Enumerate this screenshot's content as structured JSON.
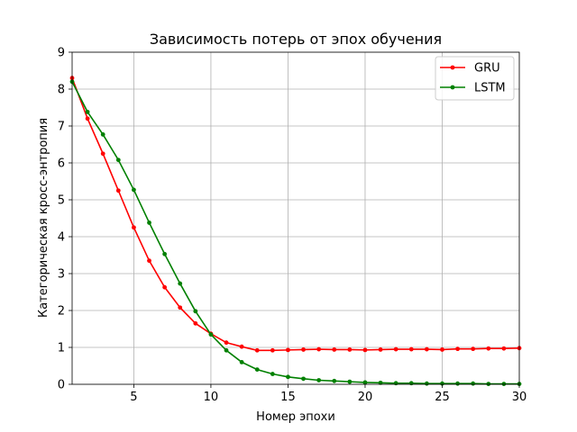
{
  "chart_data": {
    "type": "line",
    "title": "Зависимость потерь от эпох обучения",
    "xlabel": "Номер эпохи",
    "ylabel": "Категорическая кросс-энтропия",
    "xlim": [
      1,
      30
    ],
    "ylim": [
      0,
      9
    ],
    "xticks": [
      5,
      10,
      15,
      20,
      25,
      30
    ],
    "yticks": [
      0,
      1,
      2,
      3,
      4,
      5,
      6,
      7,
      8,
      9
    ],
    "grid": true,
    "legend_position": "top-right",
    "x": [
      1,
      2,
      3,
      4,
      5,
      6,
      7,
      8,
      9,
      10,
      11,
      12,
      13,
      14,
      15,
      16,
      17,
      18,
      19,
      20,
      21,
      22,
      23,
      24,
      25,
      26,
      27,
      28,
      29,
      30
    ],
    "series": [
      {
        "name": "GRU",
        "color": "#ff0000",
        "values": [
          8.3,
          7.2,
          6.25,
          5.25,
          4.25,
          3.35,
          2.63,
          2.08,
          1.65,
          1.37,
          1.13,
          1.02,
          0.92,
          0.92,
          0.93,
          0.94,
          0.95,
          0.94,
          0.94,
          0.93,
          0.94,
          0.95,
          0.95,
          0.95,
          0.94,
          0.96,
          0.96,
          0.97,
          0.97,
          0.98
        ]
      },
      {
        "name": "LSTM",
        "color": "#008000",
        "values": [
          8.2,
          7.38,
          6.77,
          6.08,
          5.27,
          4.38,
          3.53,
          2.73,
          1.98,
          1.35,
          0.92,
          0.6,
          0.4,
          0.28,
          0.2,
          0.15,
          0.11,
          0.09,
          0.07,
          0.05,
          0.04,
          0.03,
          0.03,
          0.02,
          0.02,
          0.02,
          0.02,
          0.01,
          0.01,
          0.01
        ]
      }
    ]
  }
}
